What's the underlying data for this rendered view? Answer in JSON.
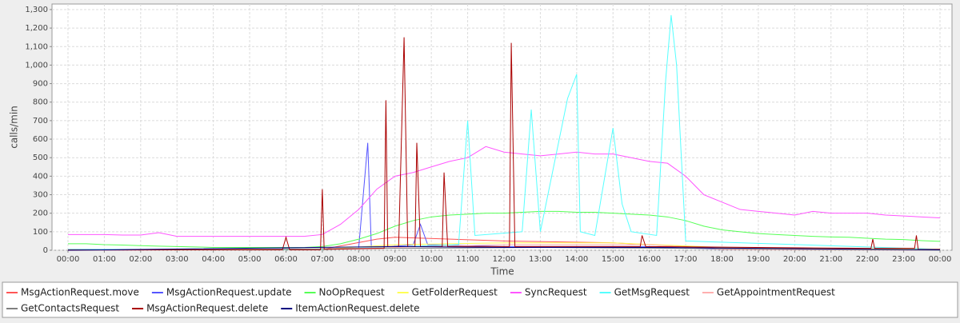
{
  "chart_data": {
    "type": "line",
    "xlabel": "Time",
    "ylabel": "calls/min",
    "xlim": [
      -0.44,
      24.33
    ],
    "ylim": [
      0,
      1330
    ],
    "xticks": [
      {
        "value": 0,
        "label": "00:00"
      },
      {
        "value": 1,
        "label": "01:00"
      },
      {
        "value": 2,
        "label": "02:00"
      },
      {
        "value": 3,
        "label": "03:00"
      },
      {
        "value": 4,
        "label": "04:00"
      },
      {
        "value": 5,
        "label": "05:00"
      },
      {
        "value": 6,
        "label": "06:00"
      },
      {
        "value": 7,
        "label": "07:00"
      },
      {
        "value": 8,
        "label": "08:00"
      },
      {
        "value": 9,
        "label": "09:00"
      },
      {
        "value": 10,
        "label": "10:00"
      },
      {
        "value": 11,
        "label": "11:00"
      },
      {
        "value": 12,
        "label": "12:00"
      },
      {
        "value": 13,
        "label": "13:00"
      },
      {
        "value": 14,
        "label": "14:00"
      },
      {
        "value": 15,
        "label": "15:00"
      },
      {
        "value": 16,
        "label": "16:00"
      },
      {
        "value": 17,
        "label": "17:00"
      },
      {
        "value": 18,
        "label": "18:00"
      },
      {
        "value": 19,
        "label": "19:00"
      },
      {
        "value": 20,
        "label": "20:00"
      },
      {
        "value": 21,
        "label": "21:00"
      },
      {
        "value": 22,
        "label": "22:00"
      },
      {
        "value": 23,
        "label": "23:00"
      },
      {
        "value": 24,
        "label": "00:00"
      }
    ],
    "yticks": [
      0,
      100,
      200,
      300,
      400,
      500,
      600,
      700,
      800,
      900,
      {
        "value": 1000,
        "label": "1,000"
      },
      {
        "value": 1100,
        "label": "1,100"
      },
      {
        "value": 1200,
        "label": "1,200"
      },
      {
        "value": 1300,
        "label": "1,300"
      }
    ],
    "grid": true,
    "legend": "bottom",
    "series": [
      {
        "name": "MsgActionRequest.move",
        "color": "#ff5555",
        "x": [
          0,
          7,
          8.5,
          9,
          12,
          15,
          18,
          24
        ],
        "values": [
          0,
          5,
          60,
          70,
          50,
          40,
          10,
          5
        ]
      },
      {
        "name": "MsgActionRequest.update",
        "color": "#5555ff",
        "x": [
          0,
          8,
          8.25,
          8.35,
          9.5,
          9.7,
          9.9,
          12,
          16,
          18,
          24
        ],
        "values": [
          0,
          10,
          580,
          10,
          30,
          140,
          30,
          20,
          20,
          5,
          2
        ]
      },
      {
        "name": "NoOpRequest",
        "color": "#55ff55",
        "x": [
          0,
          0.5,
          1,
          1.5,
          2,
          2.5,
          3,
          3.5,
          4,
          4.5,
          5,
          5.5,
          6,
          6.5,
          7,
          7.5,
          8,
          8.5,
          9,
          9.5,
          10,
          10.5,
          11,
          11.5,
          12,
          12.5,
          13,
          13.5,
          14,
          14.5,
          15,
          15.5,
          16,
          16.5,
          17,
          17.5,
          18,
          18.5,
          19,
          19.5,
          20,
          20.5,
          21,
          21.5,
          22,
          22.5,
          23,
          23.5,
          24
        ],
        "values": [
          35,
          35,
          30,
          28,
          25,
          22,
          20,
          18,
          15,
          15,
          15,
          15,
          15,
          15,
          20,
          35,
          60,
          90,
          130,
          160,
          180,
          190,
          195,
          200,
          200,
          205,
          210,
          210,
          205,
          205,
          200,
          195,
          190,
          180,
          160,
          130,
          110,
          100,
          90,
          85,
          80,
          75,
          72,
          70,
          65,
          60,
          58,
          52,
          48
        ]
      },
      {
        "name": "GetFolderRequest",
        "color": "#ffff55",
        "x": [
          0,
          7,
          9,
          12,
          15,
          18,
          24
        ],
        "values": [
          2,
          5,
          30,
          40,
          40,
          15,
          5
        ]
      },
      {
        "name": "SyncRequest",
        "color": "#ff55ff",
        "x": [
          0,
          0.5,
          1,
          1.5,
          2,
          2.5,
          3,
          3.5,
          4,
          4.5,
          5,
          5.5,
          6,
          6.5,
          7,
          7.5,
          8,
          8.5,
          9,
          9.5,
          10,
          10.5,
          11,
          11.5,
          12,
          12.5,
          13,
          13.5,
          14,
          14.5,
          15,
          15.5,
          16,
          16.5,
          17,
          17.5,
          18,
          18.5,
          19,
          19.5,
          20,
          20.5,
          21,
          21.5,
          22,
          22.5,
          23,
          23.5,
          24
        ],
        "values": [
          85,
          85,
          85,
          82,
          82,
          95,
          75,
          75,
          75,
          75,
          75,
          75,
          75,
          75,
          85,
          140,
          220,
          330,
          400,
          420,
          450,
          480,
          500,
          560,
          530,
          520,
          510,
          520,
          530,
          520,
          520,
          500,
          480,
          470,
          400,
          300,
          260,
          220,
          210,
          200,
          190,
          210,
          200,
          200,
          200,
          190,
          185,
          180,
          175
        ]
      },
      {
        "name": "GetMsgRequest",
        "color": "#55ffff",
        "x": [
          0,
          7,
          10.75,
          11,
          11.2,
          12.5,
          12.75,
          13,
          13.75,
          14,
          14.1,
          14.5,
          15,
          15.25,
          15.5,
          16.2,
          16.45,
          16.6,
          16.75,
          17,
          24
        ],
        "values": [
          5,
          5,
          30,
          700,
          80,
          100,
          760,
          100,
          820,
          950,
          100,
          80,
          660,
          250,
          100,
          80,
          920,
          1270,
          1000,
          50,
          5
        ]
      },
      {
        "name": "GetAppointmentRequest",
        "color": "#ffafaf",
        "x": [
          0,
          8,
          12,
          16,
          18,
          24
        ],
        "values": [
          0,
          10,
          30,
          30,
          5,
          0
        ]
      },
      {
        "name": "GetContactsRequest",
        "color": "#808080",
        "x": [
          0,
          9,
          13,
          17,
          24
        ],
        "values": [
          0,
          10,
          15,
          10,
          0
        ]
      },
      {
        "name": "MsgActionRequest.delete",
        "color": "#aa0000",
        "x": [
          0,
          5.9,
          6,
          6.1,
          6.95,
          7,
          7.05,
          8.7,
          8.75,
          8.8,
          9.1,
          9.25,
          9.35,
          9.55,
          9.6,
          9.7,
          10.3,
          10.35,
          10.45,
          12.15,
          12.2,
          12.3,
          15.75,
          15.8,
          15.9,
          22.1,
          22.15,
          22.2,
          23.3,
          23.35,
          23.4,
          24
        ],
        "values": [
          2,
          2,
          70,
          2,
          2,
          330,
          5,
          10,
          810,
          20,
          20,
          1150,
          20,
          20,
          580,
          20,
          20,
          420,
          20,
          20,
          1120,
          20,
          20,
          80,
          20,
          10,
          60,
          10,
          10,
          80,
          5,
          5
        ]
      },
      {
        "name": "ItemActionRequest.delete",
        "color": "#000080",
        "x": [
          0,
          9,
          12,
          16,
          24
        ],
        "values": [
          0,
          20,
          15,
          15,
          2
        ]
      }
    ]
  }
}
